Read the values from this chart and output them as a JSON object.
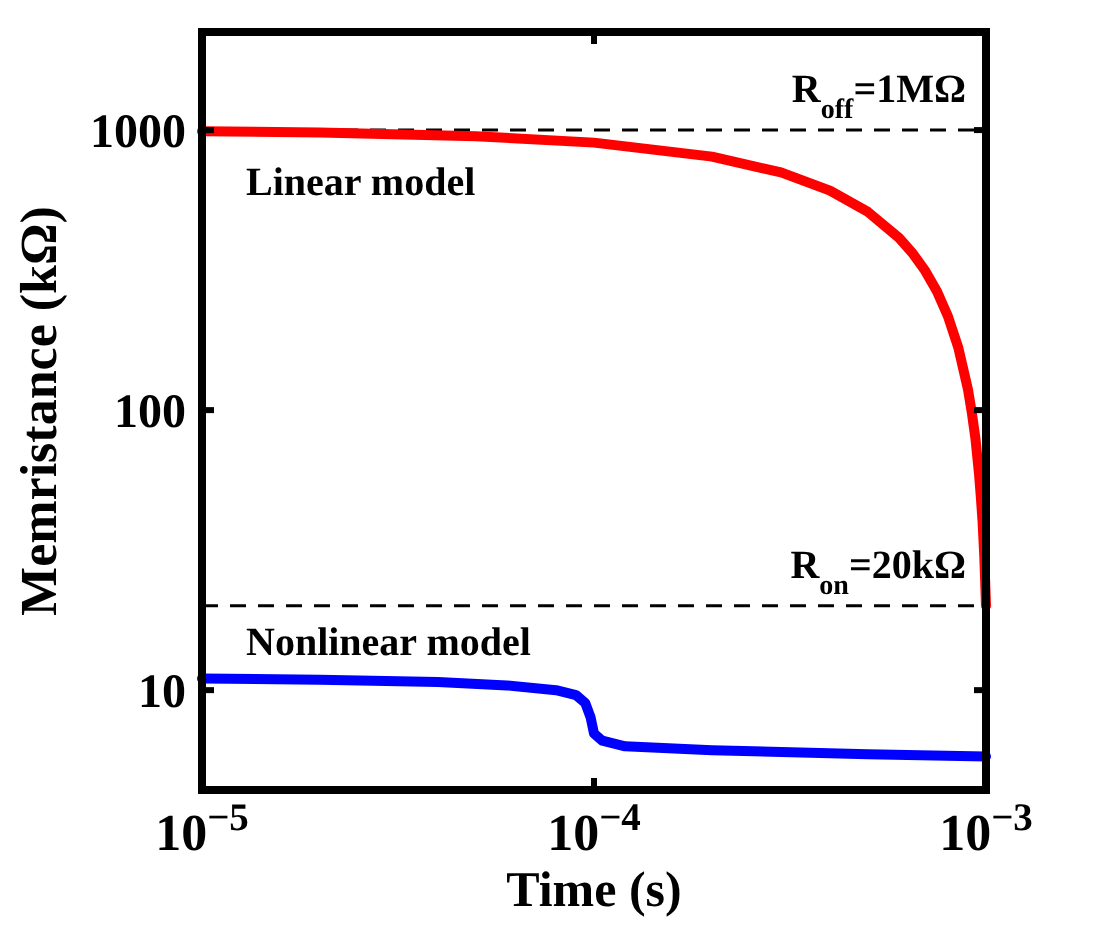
{
  "chart_data": {
    "type": "line",
    "xlabel": "Time (s)",
    "ylabel": "Memristance (kΩ)",
    "log": "xy",
    "grid": false,
    "marker": "none",
    "line_style": "solid",
    "xlim": [
      1e-05,
      0.001
    ],
    "xticks": [
      {
        "value": 1e-05,
        "label": "10$^{−5}$"
      },
      {
        "value": 0.0001,
        "label": "10$^{−4}$"
      },
      {
        "value": 0.001,
        "label": "10$^{−3}$"
      }
    ],
    "ylim": [
      4.4,
      2240
    ],
    "yticks": [
      10,
      100,
      1000
    ],
    "ref_lines": [
      {
        "axis": "y",
        "value": 1000,
        "label": "R$_{off}$=1MΩ",
        "color": "#000000",
        "line_style": "dashed"
      },
      {
        "axis": "y",
        "value": 20,
        "label": "R$_{on}$=20kΩ",
        "color": "#000000",
        "line_style": "dashed"
      }
    ],
    "series": [
      {
        "name": "Linear model",
        "color": "#ff0000",
        "x": [
          1e-05,
          2e-05,
          5e-05,
          0.0001,
          0.0002,
          0.0003,
          0.0004,
          0.0005,
          0.0006,
          0.00065,
          0.0007,
          0.00075,
          0.0008,
          0.00085,
          0.0009,
          0.00092,
          0.00094,
          0.00096,
          0.00097,
          0.00098,
          0.00099,
          0.001
        ],
        "values": [
          990,
          980,
          951,
          902,
          804,
          706,
          608,
          510,
          412,
          363,
          314,
          265,
          216,
          167,
          118,
          98,
          79,
          59,
          49,
          40,
          30,
          20
        ]
      },
      {
        "name": "Nonlinear model",
        "color": "#0000ff",
        "x": [
          1e-05,
          2e-05,
          4e-05,
          6e-05,
          8e-05,
          9e-05,
          9.5e-05,
          9.8e-05,
          0.0001,
          0.000105,
          0.00012,
          0.0002,
          0.0005,
          0.001
        ],
        "values": [
          11,
          10.9,
          10.7,
          10.4,
          10,
          9.6,
          9,
          8,
          7,
          6.6,
          6.3,
          6.1,
          5.9,
          5.8
        ]
      }
    ]
  }
}
